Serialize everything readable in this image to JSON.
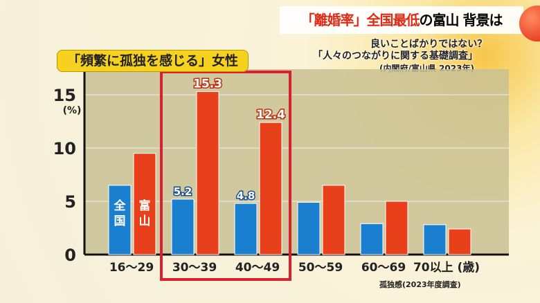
{
  "header": {
    "title_red": "「離婚率」全国最低",
    "title_black": "の富山 背景は"
  },
  "subtitle": {
    "line1": "良いことばかりではない？",
    "line2": "「人々のつながりに関する基礎調査」",
    "line3": "(内閣府/富山県 2023年)"
  },
  "chart_data": {
    "type": "bar",
    "title": "「頻繁に孤独を感じる」女性",
    "ylabel": "(%)",
    "ylim": [
      0,
      15
    ],
    "yticks": [
      "0",
      "5",
      "10",
      "15"
    ],
    "categories": [
      "16〜29",
      "30〜39",
      "40〜49",
      "50〜59",
      "60〜69",
      "70以上 (歳)"
    ],
    "series": [
      {
        "name": "全国",
        "color": "#1a7fcf",
        "values": [
          6.5,
          5.2,
          4.8,
          4.9,
          2.9,
          2.8
        ]
      },
      {
        "name": "富山",
        "color": "#e8401a",
        "values": [
          9.5,
          15.3,
          12.4,
          6.5,
          5.0,
          2.4
        ]
      }
    ],
    "data_labels": {
      "national": [
        "",
        "5.2",
        "4.8",
        "",
        "",
        ""
      ],
      "toyama": [
        "",
        "15.3",
        "12.4",
        "",
        "",
        ""
      ]
    },
    "highlight": [
      "30〜39",
      "40〜49"
    ],
    "highlight_color": "#d8202e",
    "footnote": "孤独感(2023年度調査)"
  }
}
